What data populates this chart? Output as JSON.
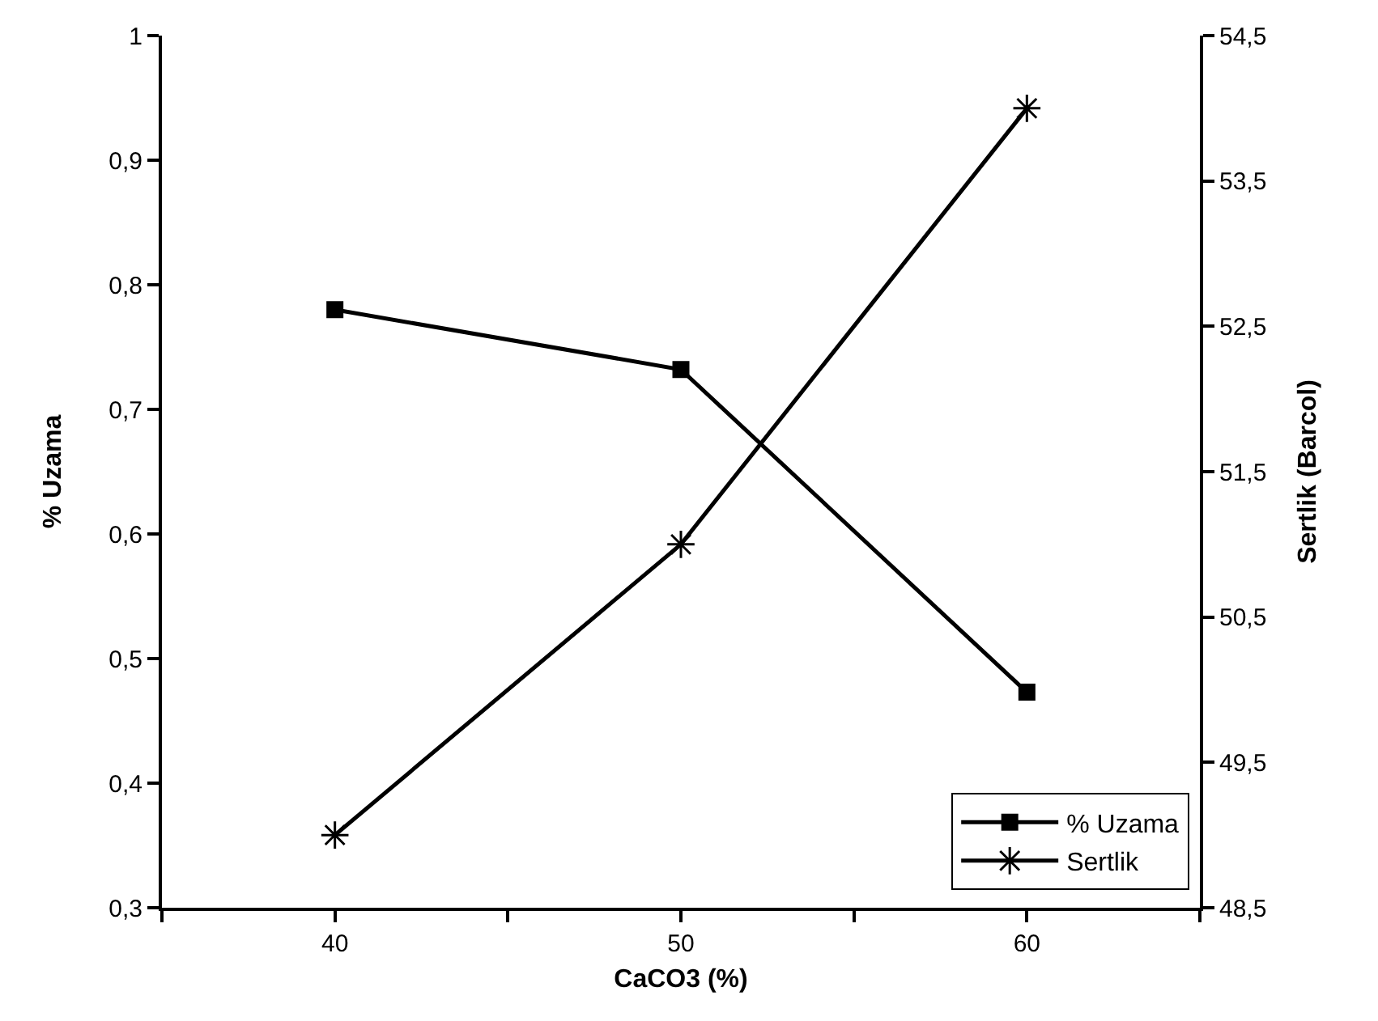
{
  "chart_data": {
    "type": "line",
    "xlabel": "CaCO3 (%)",
    "ylabel": "% Uzama",
    "y2label": "Sertlik (Barcol)",
    "x": [
      40,
      50,
      60
    ],
    "series": [
      {
        "name": "% Uzama",
        "color": "#000000",
        "values": [
          0.78,
          0.732,
          0.473
        ],
        "marker": "square"
      },
      {
        "name": "Sertlik",
        "color": "#000000",
        "values": [
          49.0,
          51.0,
          54.0
        ],
        "marker": "cross",
        "axis": "y2"
      }
    ],
    "xlim": [
      35,
      65
    ],
    "xticks": [
      {
        "value": 35,
        "label": null
      },
      40,
      {
        "value": 45,
        "label": null
      },
      50,
      {
        "value": 55,
        "label": null
      },
      60,
      {
        "value": 65,
        "label": null
      }
    ],
    "ylim": [
      0.3,
      1
    ],
    "yticks": [
      {
        "value": 0.3,
        "label": "0,3"
      },
      {
        "value": 0.4,
        "label": "0,4"
      },
      {
        "value": 0.5,
        "label": "0,5"
      },
      {
        "value": 0.6,
        "label": "0,6"
      },
      {
        "value": 0.7,
        "label": "0,7"
      },
      {
        "value": 0.8,
        "label": "0,8"
      },
      {
        "value": 0.9,
        "label": "0,9"
      },
      1
    ],
    "y2lim": [
      48.5,
      54.5
    ],
    "y2ticks": [
      {
        "value": 48.5,
        "label": "48,5"
      },
      {
        "value": 49.5,
        "label": "49,5"
      },
      {
        "value": 50.5,
        "label": "50,5"
      },
      {
        "value": 51.5,
        "label": "51,5"
      },
      {
        "value": 52.5,
        "label": "52,5"
      },
      {
        "value": 53.5,
        "label": "53,5"
      },
      {
        "value": 54.5,
        "label": "54,5"
      }
    ],
    "grid": false,
    "legend": "bottom right",
    "line_style": "solid"
  }
}
